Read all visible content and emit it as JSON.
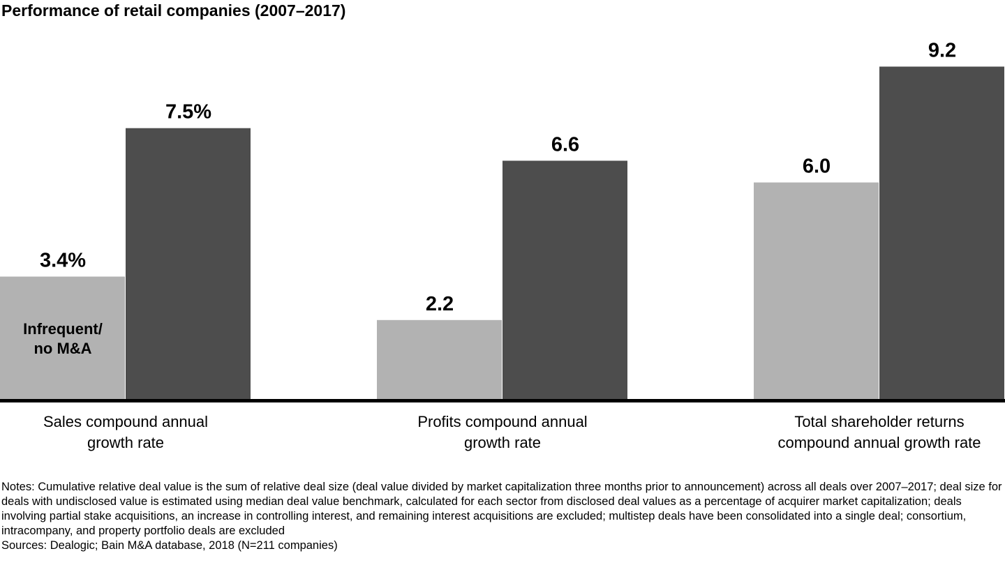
{
  "title": "Performance of retail companies (2007–2017)",
  "chart_data": {
    "type": "bar",
    "title": "Performance of retail companies (2007–2017)",
    "categories": [
      "Sales compound annual\ngrowth rate",
      "Profits compound annual\ngrowth rate",
      "Total shareholder returns\ncompound annual growth rate"
    ],
    "series": [
      {
        "name": "Infrequent/\nno M&A",
        "color": "#b2b2b2",
        "values": [
          3.4,
          2.2,
          6.0
        ],
        "labels": [
          "3.4%",
          "2.2",
          "6.0"
        ]
      },
      {
        "name": "",
        "color": "#4d4d4d",
        "values": [
          7.5,
          6.6,
          9.2
        ],
        "labels": [
          "7.5%",
          "6.6",
          "9.2"
        ]
      }
    ],
    "ylim": [
      0,
      10.5
    ],
    "grid": false,
    "legend": "inside first bar"
  },
  "notes": "Notes: Cumulative relative deal value is the sum of relative deal size (deal value divided by market capitalization three months prior to announcement) across all deals over 2007–2017; deal size for deals with undisclosed value is estimated using median deal value benchmark, calculated for each sector from disclosed deal values as a percentage of acquirer market capitalization; deals involving partial stake acquisitions, an increase in controlling interest, and remaining interest acquisitions are excluded; multistep deals have been consolidated into a single deal; consortium, intracompany, and property portfolio deals are excluded",
  "sources": "Sources: Dealogic; Bain M&A database, 2018 (N=211 companies)"
}
